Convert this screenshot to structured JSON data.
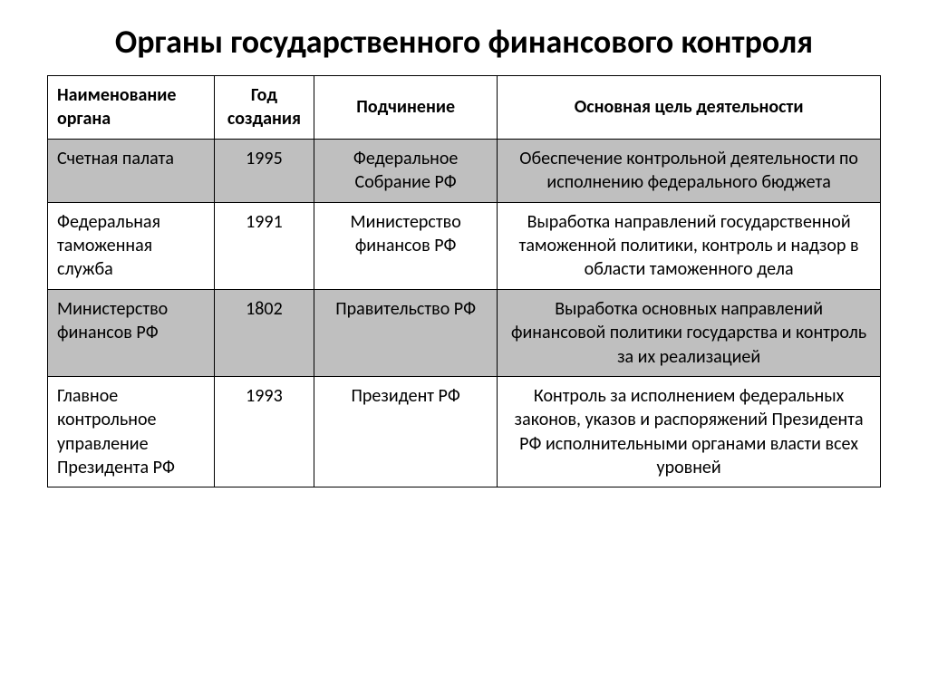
{
  "title": "Органы государственного финансового контроля",
  "table": {
    "columns": [
      {
        "label": "Наименование органа",
        "class": "col-name"
      },
      {
        "label": "Год создания",
        "class": "col-year"
      },
      {
        "label": "Подчинение",
        "class": "col-sub"
      },
      {
        "label": "Основная цель деятельности",
        "class": "col-purpose"
      }
    ],
    "rows": [
      {
        "shaded": true,
        "cells": [
          "Счетная палата",
          "1995",
          "Федеральное Собрание РФ",
          "Обеспечение контрольной деятельности по исполнению федерального бюджета"
        ]
      },
      {
        "shaded": false,
        "cells": [
          "Федеральная таможенная служба",
          "1991",
          "Министерство финансов РФ",
          "Выработка направлений государственной таможенной политики, контроль и надзор в области таможенного дела"
        ]
      },
      {
        "shaded": true,
        "cells": [
          "Министерство финансов РФ",
          "1802",
          "Правительство РФ",
          "Выработка основных направлений финансовой политики государства и контроль за их реализацией"
        ]
      },
      {
        "shaded": false,
        "cells": [
          "Главное контрольное управление Президента РФ",
          "1993",
          "Президент РФ",
          "Контроль за исполнением федеральных законов, указов и распоряжений Президента РФ исполнительными органами власти всех уровней"
        ]
      }
    ]
  },
  "style": {
    "background_color": "#ffffff",
    "shaded_row_color": "#bfbfbf",
    "border_color": "#000000",
    "title_fontsize": 36,
    "cell_fontsize": 20,
    "font_family": "Calibri, Arial, sans-serif"
  }
}
